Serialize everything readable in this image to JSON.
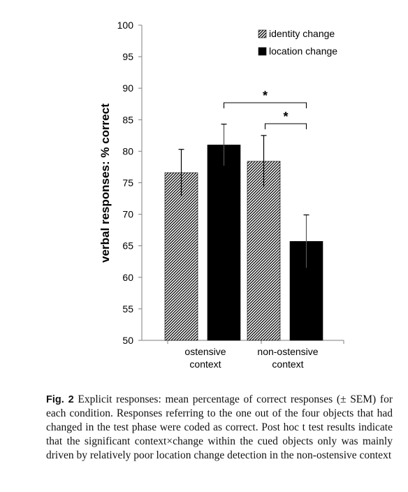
{
  "chart_data": {
    "type": "bar",
    "categories": [
      "ostensive context",
      "non-ostensive context"
    ],
    "category_lines": [
      [
        "ostensive",
        "context"
      ],
      [
        "non-ostensive",
        "context"
      ]
    ],
    "series": [
      {
        "name": "identity change",
        "values": [
          76.6,
          78.4
        ],
        "errors": [
          3.7,
          4.1
        ],
        "pattern": "hatched"
      },
      {
        "name": "location change",
        "values": [
          81.0,
          65.7
        ],
        "errors": [
          3.3,
          4.2
        ],
        "pattern": "solid"
      }
    ],
    "ylabel": "verbal responses: % correct",
    "xlabel": "",
    "ylim": [
      50,
      100
    ],
    "yticks": [
      50,
      55,
      60,
      65,
      70,
      75,
      80,
      85,
      90,
      95,
      100
    ],
    "grid": false,
    "legend": "top-right",
    "significance": [
      {
        "from": "ostensive context / location change",
        "to": "non-ostensive context / location change",
        "label": "*"
      },
      {
        "from": "non-ostensive context / identity change",
        "to": "non-ostensive context / location change",
        "label": "*"
      }
    ],
    "colors": {
      "bars": "#000000",
      "hatch_background": "#ffffff",
      "axis": "#7f7f7f"
    }
  },
  "caption": {
    "label": "Fig. 2",
    "text": "Explicit responses: mean percentage of correct responses (± SEM) for each condition. Responses referring to the one out of the four objects that had changed in the test phase were coded as correct. Post hoc t test results indicate that the significant context×change within the cued objects only was mainly driven by relatively poor location change detection in the non-ostensive context"
  }
}
